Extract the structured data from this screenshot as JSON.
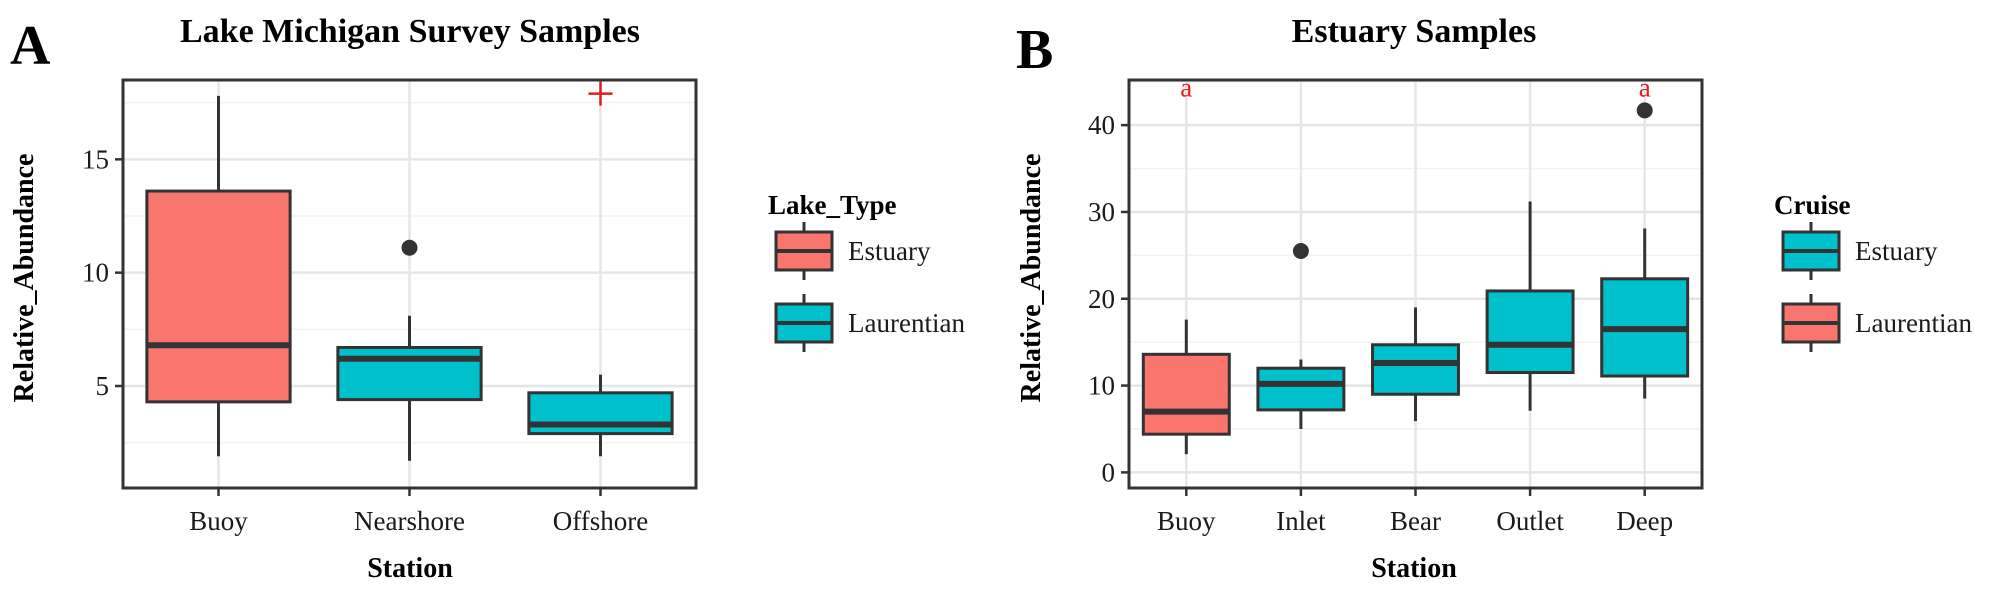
{
  "colors": {
    "estuary": "#f8766d",
    "laurentian": "#00c0cc",
    "outline": "#333333",
    "grid_major": "#e6e6e6",
    "grid_minor": "#f2f2f2",
    "annotation": "#e41a1c"
  },
  "chart_data": [
    {
      "panel_label": "A",
      "type": "box",
      "title": "Lake Michigan Survey Samples",
      "xlabel": "Station",
      "ylabel": "Relative_Abundance",
      "ylim": [
        0.5,
        18.5
      ],
      "yticks": [
        5,
        10,
        15
      ],
      "grid": true,
      "legend": {
        "title": "Lake_Type",
        "placement": "right",
        "entries": [
          {
            "label": "Estuary",
            "color_key": "estuary"
          },
          {
            "label": "Laurentian",
            "color_key": "laurentian"
          }
        ]
      },
      "categories": [
        "Buoy",
        "Nearshore",
        "Offshore"
      ],
      "boxes": [
        {
          "category": "Buoy",
          "group": "estuary",
          "min": 1.9,
          "q1": 4.3,
          "median": 6.8,
          "q3": 13.6,
          "max": 17.8,
          "outliers": []
        },
        {
          "category": "Nearshore",
          "group": "laurentian",
          "min": 1.7,
          "q1": 4.4,
          "median": 6.2,
          "q3": 6.7,
          "max": 8.1,
          "outliers": [
            11.1
          ]
        },
        {
          "category": "Offshore",
          "group": "laurentian",
          "min": 1.9,
          "q1": 2.9,
          "median": 3.3,
          "q3": 4.7,
          "max": 5.5,
          "outliers": []
        }
      ],
      "annotations": [
        {
          "category": "Offshore",
          "marker": "+",
          "y": 17.9
        }
      ]
    },
    {
      "panel_label": "B",
      "type": "box",
      "title": "Estuary Samples",
      "xlabel": "Station",
      "ylabel": "Relative_Abundance",
      "ylim": [
        -1.8,
        45.2
      ],
      "yticks": [
        0,
        10,
        20,
        30,
        40
      ],
      "grid": true,
      "legend": {
        "title": "Cruise",
        "placement": "right",
        "entries": [
          {
            "label": "Estuary",
            "color_key": "laurentian"
          },
          {
            "label": "Laurentian",
            "color_key": "estuary"
          }
        ]
      },
      "categories": [
        "Buoy",
        "Inlet",
        "Bear",
        "Outlet",
        "Deep"
      ],
      "boxes": [
        {
          "category": "Buoy",
          "group": "estuary",
          "min": 2.1,
          "q1": 4.4,
          "median": 7.0,
          "q3": 13.6,
          "max": 17.6,
          "outliers": []
        },
        {
          "category": "Inlet",
          "group": "laurentian",
          "min": 5.0,
          "q1": 7.2,
          "median": 10.2,
          "q3": 12.0,
          "max": 13.0,
          "outliers": [
            25.5
          ]
        },
        {
          "category": "Bear",
          "group": "laurentian",
          "min": 5.9,
          "q1": 9.0,
          "median": 12.6,
          "q3": 14.7,
          "max": 19.0,
          "outliers": []
        },
        {
          "category": "Outlet",
          "group": "laurentian",
          "min": 7.1,
          "q1": 11.5,
          "median": 14.7,
          "q3": 20.9,
          "max": 31.2,
          "outliers": []
        },
        {
          "category": "Deep",
          "group": "laurentian",
          "min": 8.5,
          "q1": 11.1,
          "median": 16.5,
          "q3": 22.3,
          "max": 28.1,
          "outliers": [
            41.7
          ]
        }
      ],
      "annotations": [
        {
          "category": "Buoy",
          "text": "a",
          "y": 44.0
        },
        {
          "category": "Deep",
          "text": "a",
          "y": 44.0
        }
      ]
    }
  ]
}
